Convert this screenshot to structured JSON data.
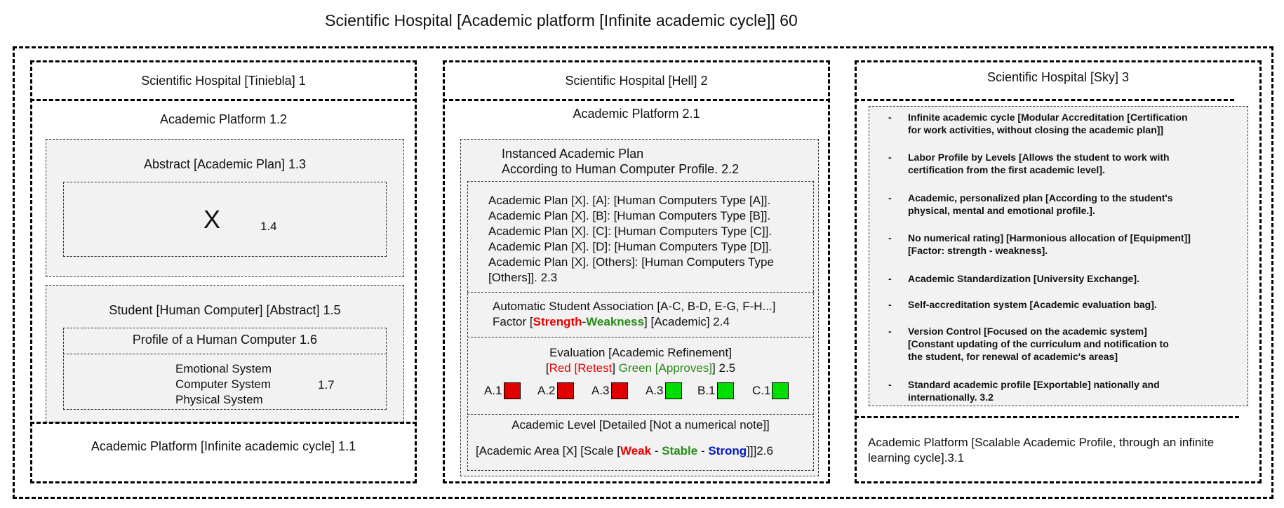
{
  "title": "Scientific Hospital [Academic platform [Infinite academic cycle]] 60",
  "col1": {
    "header": "Scientific Hospital [Tiniebla] 1",
    "platform": "Academic Platform 1.2",
    "abstract_title": "Abstract [Academic Plan] 1.3",
    "x_mark": "X",
    "x_label": "1.4",
    "student_title": "Student [Human Computer] [Abstract] 1.5",
    "profile_title": "Profile of a Human Computer 1.6",
    "systems": [
      "Emotional System",
      "Computer System",
      "Physical System"
    ],
    "systems_label": "1.7",
    "footer": "Academic Platform [Infinite academic cycle] 1.1"
  },
  "col2": {
    "header": "Scientific Hospital [Hell] 2",
    "platform": "Academic Platform 2.1",
    "instanced_lines": [
      "Instanced Academic Plan",
      "According to Human Computer Profile. 2.2"
    ],
    "plan_lines": [
      "Academic Plan [X]. [A]: [Human Computers Type [A]].",
      "Academic Plan [X]. [B]: [Human Computers Type [B]].",
      "Academic Plan [X]. [C]: [Human Computers Type [C]].",
      "Academic Plan [X]. [D]: [Human Computers Type [D]].",
      "Academic Plan [X]. [Others]: [Human Computers Type",
      "[Others]]. 2.3"
    ],
    "association": {
      "line1": "Automatic Student Association [A-C, B-D, E-G, F-H...]",
      "prefix": "Factor [",
      "strength": "Strength",
      "sep": "-",
      "weakness": "Weakness",
      "suffix": "] [Academic] 2.4"
    },
    "evaluation": {
      "line1": "Evaluation [Academic Refinement]",
      "open": "[",
      "red_text": "Red [Retest",
      "mid": "] ",
      "green_text": "Green [Approves]",
      "end": "] 2.5"
    },
    "grades": [
      {
        "label": "A.1",
        "color": "#e00000"
      },
      {
        "label": "A.2",
        "color": "#e00000"
      },
      {
        "label": "A.3",
        "color": "#e00000"
      },
      {
        "label": "A.3",
        "color": "#00dd00"
      },
      {
        "label": "B.1",
        "color": "#00dd00"
      },
      {
        "label": "C.1",
        "color": "#00dd00"
      }
    ],
    "level": {
      "line1": "Academic Level [Detailed [Not a numerical note]]",
      "prefix": "[Academic Area [X] [Scale [",
      "weak": "Weak",
      "sep1": " - ",
      "stable": "Stable",
      "sep2": " - ",
      "strong": "Strong",
      "suffix": "]]]2.6"
    }
  },
  "col3": {
    "header": "Scientific Hospital [Sky] 3",
    "bullet_dash": "-",
    "bullets": [
      [
        "Infinite academic cycle [Modular Accreditation [Certification",
        "for work activities, without closing the academic plan]]"
      ],
      [
        "Labor Profile by Levels [Allows the student to work with",
        "certification from the first academic level]."
      ],
      [
        "Academic, personalized plan [According to the student's",
        "physical, mental and emotional profile.]."
      ],
      [
        "No numerical rating] [Harmonious allocation of [Equipment]]",
        "[Factor: strength - weakness]."
      ],
      [
        "Academic Standardization [University Exchange]."
      ],
      [
        "Self-accreditation system [Academic evaluation bag]."
      ],
      [
        "Version Control [Focused on the academic system]",
        "[Constant updating of the curriculum and notification to",
        "the student, for renewal of academic's areas]"
      ],
      [
        "Standard academic profile [Exportable] nationally and",
        "internationally. 3.2"
      ]
    ],
    "footer_lines": [
      "Academic Platform [Scalable Academic Profile, through an infinite",
      "learning cycle].3.1"
    ]
  },
  "colors": {
    "red": "#e60000",
    "green": "#2a8a1a",
    "blue": "#0018c8",
    "panel": "#f2f2f2"
  }
}
